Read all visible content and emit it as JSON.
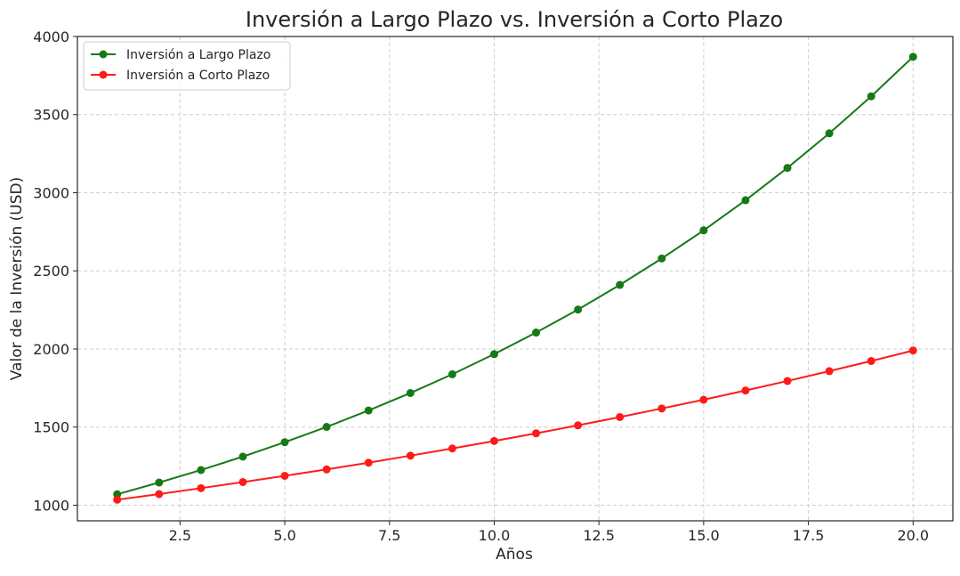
{
  "chart_data": {
    "type": "line",
    "title": "Inversión a Largo Plazo vs. Inversión a Corto Plazo",
    "xlabel": "Años",
    "ylabel": "Valor de la Inversión (USD)",
    "x": [
      1,
      2,
      3,
      4,
      5,
      6,
      7,
      8,
      9,
      10,
      11,
      12,
      13,
      14,
      15,
      16,
      17,
      18,
      19,
      20
    ],
    "xlim": [
      0.05,
      20.95
    ],
    "ylim": [
      900,
      4000
    ],
    "x_ticks": [
      "2.5",
      "5.0",
      "7.5",
      "10.0",
      "12.5",
      "15.0",
      "17.5",
      "20.0"
    ],
    "y_ticks": [
      "1000",
      "1500",
      "2000",
      "2500",
      "3000",
      "3500",
      "4000"
    ],
    "grid": true,
    "legend_position": "top-left",
    "series": [
      {
        "name": "Inversión a Largo Plazo",
        "color": "#157a15",
        "values": [
          1070,
          1145,
          1225,
          1311,
          1403,
          1501,
          1606,
          1718,
          1838,
          1967,
          2105,
          2252,
          2410,
          2579,
          2759,
          2952,
          3159,
          3380,
          3617,
          3870
        ]
      },
      {
        "name": "Inversión a Corto Plazo",
        "color": "#ff1a1a",
        "values": [
          1035,
          1071,
          1109,
          1148,
          1188,
          1229,
          1272,
          1317,
          1363,
          1411,
          1460,
          1511,
          1564,
          1619,
          1675,
          1734,
          1795,
          1858,
          1923,
          1990
        ]
      }
    ]
  }
}
